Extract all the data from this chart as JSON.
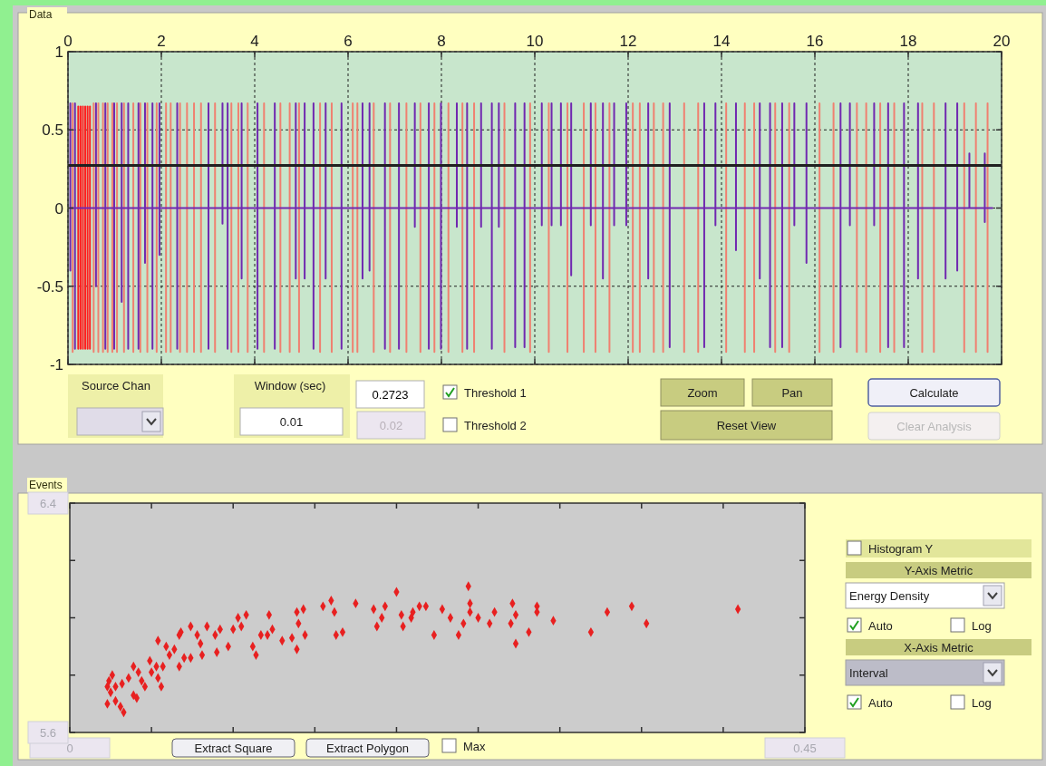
{
  "chart_data": [
    {
      "type": "line",
      "title": "Data",
      "xlim": [
        0,
        20
      ],
      "xticks": [
        0,
        2,
        4,
        6,
        8,
        10,
        12,
        14,
        16,
        18,
        20
      ],
      "ylim": [
        -1,
        1
      ],
      "yticks": [
        -1,
        -0.5,
        0,
        0.5,
        1
      ],
      "grid": true,
      "ref_lines": [
        {
          "axis": "y",
          "value": 0.2723,
          "label": "0.2723",
          "color": "#202020"
        }
      ],
      "annotations": [
        "Source Chan",
        "Window (sec)",
        "0.01",
        "0.02",
        "Threshold 1",
        "Threshold 2",
        "Zoom",
        "Pan",
        "Reset View",
        "Calculate",
        "Clear Analysis"
      ],
      "series": [
        {
          "color": "#f08070",
          "x": [
            0.1,
            0.1
          ],
          "values": [
            0.67,
            -0.92
          ]
        },
        {
          "color": "#f08070",
          "x": [
            0.55,
            0.55
          ],
          "values": [
            0.67,
            -0.92
          ]
        },
        {
          "color": "#f08070",
          "x": [
            0.65,
            0.65
          ],
          "values": [
            0.67,
            -0.92
          ]
        },
        {
          "color": "#f08070",
          "x": [
            0.75,
            0.75
          ],
          "values": [
            0.67,
            -0.92
          ]
        },
        {
          "color": "#f08070",
          "x": [
            0.85,
            0.85
          ],
          "values": [
            0.67,
            -0.92
          ]
        },
        {
          "color": "#f08070",
          "x": [
            0.95,
            0.95
          ],
          "values": [
            0.67,
            -0.92
          ]
        },
        {
          "color": "#f08070",
          "x": [
            1.05,
            1.05
          ],
          "values": [
            0.67,
            -0.92
          ]
        },
        {
          "color": "#f08070",
          "x": [
            1.2,
            1.2
          ],
          "values": [
            0.67,
            -0.92
          ]
        },
        {
          "color": "#f08070",
          "x": [
            1.4,
            1.4
          ],
          "values": [
            0.67,
            -0.92
          ]
        },
        {
          "color": "#f08070",
          "x": [
            1.55,
            1.55
          ],
          "values": [
            0.67,
            -0.92
          ]
        },
        {
          "color": "#f08070",
          "x": [
            1.7,
            1.7
          ],
          "values": [
            0.67,
            -0.92
          ]
        },
        {
          "color": "#f08070",
          "x": [
            1.9,
            1.9
          ],
          "values": [
            0.67,
            -0.92
          ]
        },
        {
          "color": "#f08070",
          "x": [
            2.1,
            2.1
          ],
          "values": [
            0.67,
            -0.92
          ]
        },
        {
          "color": "#f08070",
          "x": [
            2.2,
            2.2
          ],
          "values": [
            0.67,
            -0.92
          ]
        },
        {
          "color": "#f08070",
          "x": [
            2.4,
            2.4
          ],
          "values": [
            0.67,
            -0.92
          ]
        },
        {
          "color": "#f08070",
          "x": [
            2.55,
            2.55
          ],
          "values": [
            0.67,
            -0.92
          ]
        },
        {
          "color": "#f08070",
          "x": [
            2.7,
            2.7
          ],
          "values": [
            0.67,
            -0.92
          ]
        },
        {
          "color": "#f08070",
          "x": [
            2.85,
            2.85
          ],
          "values": [
            0.67,
            -0.92
          ]
        },
        {
          "color": "#f08070",
          "x": [
            3.15,
            3.15
          ],
          "values": [
            0.67,
            -0.92
          ]
        },
        {
          "color": "#f08070",
          "x": [
            3.5,
            3.5
          ],
          "values": [
            0.67,
            -0.92
          ]
        },
        {
          "color": "#f08070",
          "x": [
            3.65,
            3.65
          ],
          "values": [
            0.67,
            -0.92
          ]
        },
        {
          "color": "#f08070",
          "x": [
            3.85,
            3.85
          ],
          "values": [
            0.67,
            -0.92
          ]
        },
        {
          "color": "#f08070",
          "x": [
            4.2,
            4.2
          ],
          "values": [
            0.67,
            -0.92
          ]
        },
        {
          "color": "#f08070",
          "x": [
            4.55,
            4.55
          ],
          "values": [
            0.67,
            -0.92
          ]
        },
        {
          "color": "#f08070",
          "x": [
            4.75,
            4.75
          ],
          "values": [
            0.67,
            -0.92
          ]
        },
        {
          "color": "#f08070",
          "x": [
            4.95,
            4.95
          ],
          "values": [
            0.67,
            -0.92
          ]
        },
        {
          "color": "#f08070",
          "x": [
            5.4,
            5.4
          ],
          "values": [
            0.67,
            -0.92
          ]
        },
        {
          "color": "#f08070",
          "x": [
            5.65,
            5.65
          ],
          "values": [
            0.67,
            -0.92
          ]
        },
        {
          "color": "#f08070",
          "x": [
            6.1,
            6.1
          ],
          "values": [
            0.67,
            -0.92
          ]
        },
        {
          "color": "#f08070",
          "x": [
            6.2,
            6.2
          ],
          "values": [
            0.67,
            -0.92
          ]
        },
        {
          "color": "#f08070",
          "x": [
            6.55,
            6.55
          ],
          "values": [
            0.67,
            -0.92
          ]
        },
        {
          "color": "#f08070",
          "x": [
            6.9,
            6.9
          ],
          "values": [
            0.67,
            -0.92
          ]
        },
        {
          "color": "#f08070",
          "x": [
            7.25,
            7.25
          ],
          "values": [
            0.67,
            -0.92
          ]
        },
        {
          "color": "#f08070",
          "x": [
            7.55,
            7.55
          ],
          "values": [
            0.67,
            -0.92
          ]
        },
        {
          "color": "#f08070",
          "x": [
            7.85,
            7.85
          ],
          "values": [
            0.67,
            -0.92
          ]
        },
        {
          "color": "#f08070",
          "x": [
            8.15,
            8.15
          ],
          "values": [
            0.67,
            -0.92
          ]
        },
        {
          "color": "#f08070",
          "x": [
            8.45,
            8.45
          ],
          "values": [
            0.67,
            -0.92
          ]
        },
        {
          "color": "#f08070",
          "x": [
            8.7,
            8.7
          ],
          "values": [
            0.67,
            -0.92
          ]
        },
        {
          "color": "#f08070",
          "x": [
            9.35,
            9.35
          ],
          "values": [
            0.67,
            -0.92
          ]
        },
        {
          "color": "#f08070",
          "x": [
            9.9,
            9.9
          ],
          "values": [
            0.67,
            -0.92
          ]
        },
        {
          "color": "#f08070",
          "x": [
            10.3,
            10.3
          ],
          "values": [
            0.67,
            -0.92
          ]
        },
        {
          "color": "#f08070",
          "x": [
            10.7,
            10.7
          ],
          "values": [
            0.67,
            -0.92
          ]
        },
        {
          "color": "#f08070",
          "x": [
            11.05,
            11.05
          ],
          "values": [
            0.67,
            -0.92
          ]
        },
        {
          "color": "#f08070",
          "x": [
            11.3,
            11.3
          ],
          "values": [
            0.67,
            -0.92
          ]
        },
        {
          "color": "#f08070",
          "x": [
            11.6,
            11.6
          ],
          "values": [
            0.67,
            -0.92
          ]
        },
        {
          "color": "#f08070",
          "x": [
            12.1,
            12.1
          ],
          "values": [
            0.67,
            -0.92
          ]
        },
        {
          "color": "#f08070",
          "x": [
            12.25,
            12.25
          ],
          "values": [
            0.67,
            -0.92
          ]
        },
        {
          "color": "#f08070",
          "x": [
            12.55,
            12.55
          ],
          "values": [
            0.67,
            -0.92
          ]
        },
        {
          "color": "#f08070",
          "x": [
            12.75,
            12.75
          ],
          "values": [
            0.67,
            -0.92
          ]
        },
        {
          "color": "#f08070",
          "x": [
            13.2,
            13.2
          ],
          "values": [
            0.67,
            -0.92
          ]
        },
        {
          "color": "#f08070",
          "x": [
            13.5,
            13.5
          ],
          "values": [
            0.67,
            -0.92
          ]
        },
        {
          "color": "#f08070",
          "x": [
            14.1,
            14.1
          ],
          "values": [
            0.67,
            -0.92
          ]
        },
        {
          "color": "#f08070",
          "x": [
            14.5,
            14.5
          ],
          "values": [
            0.67,
            -0.92
          ]
        },
        {
          "color": "#f08070",
          "x": [
            14.7,
            14.7
          ],
          "values": [
            0.67,
            -0.92
          ]
        },
        {
          "color": "#f08070",
          "x": [
            15.15,
            15.15
          ],
          "values": [
            0.67,
            -0.92
          ]
        },
        {
          "color": "#f08070",
          "x": [
            15.45,
            15.45
          ],
          "values": [
            0.67,
            -0.92
          ]
        },
        {
          "color": "#f08070",
          "x": [
            16.1,
            16.1
          ],
          "values": [
            0.67,
            -0.92
          ]
        },
        {
          "color": "#f08070",
          "x": [
            16.4,
            16.4
          ],
          "values": [
            0.67,
            -0.92
          ]
        },
        {
          "color": "#f08070",
          "x": [
            16.9,
            16.9
          ],
          "values": [
            0.67,
            -0.92
          ]
        },
        {
          "color": "#f08070",
          "x": [
            17.1,
            17.1
          ],
          "values": [
            0.67,
            -0.92
          ]
        },
        {
          "color": "#f08070",
          "x": [
            17.4,
            17.4
          ],
          "values": [
            0.67,
            -0.92
          ]
        },
        {
          "color": "#f08070",
          "x": [
            17.7,
            17.7
          ],
          "values": [
            0.67,
            -0.92
          ]
        },
        {
          "color": "#f08070",
          "x": [
            18.3,
            18.3
          ],
          "values": [
            0.67,
            -0.92
          ]
        },
        {
          "color": "#f08070",
          "x": [
            18.55,
            18.55
          ],
          "values": [
            0.67,
            -0.92
          ]
        },
        {
          "color": "#f08070",
          "x": [
            19.2,
            19.2
          ],
          "values": [
            0.67,
            -0.92
          ]
        },
        {
          "color": "#f08070",
          "x": [
            19.45,
            19.45
          ],
          "values": [
            0.67,
            -0.92
          ]
        },
        {
          "color": "#f08070",
          "x": [
            19.7,
            19.7
          ],
          "values": [
            0.67,
            -0.92
          ]
        },
        {
          "color": "#ff2020",
          "x": [
            0.22,
            0.22
          ],
          "values": [
            0.65,
            -0.9
          ]
        },
        {
          "color": "#ff2020",
          "x": [
            0.27,
            0.27
          ],
          "values": [
            0.65,
            -0.9
          ]
        },
        {
          "color": "#ff2020",
          "x": [
            0.32,
            0.32
          ],
          "values": [
            0.65,
            -0.9
          ]
        },
        {
          "color": "#ff2020",
          "x": [
            0.37,
            0.37
          ],
          "values": [
            0.65,
            -0.9
          ]
        },
        {
          "color": "#ff2020",
          "x": [
            0.42,
            0.42
          ],
          "values": [
            0.65,
            -0.9
          ]
        },
        {
          "color": "#ff2020",
          "x": [
            0.47,
            0.47
          ],
          "values": [
            0.65,
            -0.9
          ]
        },
        {
          "color": "#7028b0",
          "x": [
            0.05,
            0.05,
            0.05,
            0.05,
            0.15,
            0.15,
            0.15,
            0.15,
            0.6,
            0.6,
            0.6,
            0.6,
            0.8,
            0.8,
            0.8,
            0.8,
            0.99,
            0.99,
            0.99,
            0.99,
            1.15,
            1.15,
            1.15,
            1.15,
            1.29,
            1.29,
            1.29,
            1.29,
            1.51,
            1.51,
            1.51,
            1.51,
            1.65,
            1.65,
            1.65,
            1.65,
            1.81,
            1.81,
            1.81,
            1.81,
            1.96,
            1.96,
            1.96,
            1.96,
            2.34,
            2.34,
            2.34,
            2.34,
            3.01,
            3.01,
            3.01,
            3.01,
            3.31,
            3.31,
            3.31,
            3.31,
            3.42,
            3.42,
            3.42,
            3.42,
            3.72,
            3.72,
            3.72,
            3.72,
            4.06,
            4.06,
            4.06,
            4.06,
            4.43,
            4.43,
            4.43,
            4.43,
            4.88,
            4.88,
            4.88,
            4.88,
            5.07,
            5.07,
            5.07,
            5.07,
            5.26,
            5.26,
            5.26,
            5.26,
            5.52,
            5.52,
            5.52,
            5.52,
            5.86,
            5.86,
            5.86,
            5.86,
            6.31,
            6.31,
            6.31,
            6.31,
            6.46,
            6.46,
            6.46,
            6.46,
            6.79,
            6.79,
            6.79,
            6.79,
            7.09,
            7.09,
            7.09,
            7.09,
            7.43,
            7.43,
            7.43,
            7.43,
            7.73,
            7.73,
            7.73,
            7.73,
            7.99,
            7.99,
            7.99,
            7.99,
            8.33,
            8.33,
            8.33,
            8.33,
            8.55,
            8.55,
            8.55,
            8.55,
            8.85,
            8.85,
            8.85,
            8.85,
            9.08,
            9.08,
            9.08,
            9.08,
            9.23,
            9.23,
            9.23,
            9.23,
            9.58,
            9.58,
            9.58,
            9.58,
            9.78,
            9.78,
            9.78,
            9.78,
            10.15,
            10.15,
            10.15,
            10.15,
            10.36,
            10.36,
            10.36,
            10.36,
            10.56,
            10.56,
            10.56,
            10.56,
            10.78,
            10.78,
            10.78,
            10.78,
            11.2,
            11.2,
            11.2,
            11.2,
            11.46,
            11.46,
            11.46,
            11.46,
            11.7,
            11.7,
            11.7,
            11.7,
            11.96,
            11.96,
            11.96,
            11.96,
            12.43,
            12.43,
            12.43,
            12.43,
            12.89,
            12.89,
            12.89,
            12.89,
            13.63,
            13.63,
            13.63,
            13.63,
            13.87,
            13.87,
            13.87,
            13.87,
            14.31,
            14.31,
            14.31,
            14.31,
            14.82,
            14.82,
            14.82,
            14.82,
            15.04,
            15.04,
            15.04,
            15.04,
            15.3,
            15.3,
            15.3,
            15.3,
            15.56,
            15.56,
            15.56,
            15.56,
            15.82,
            15.82,
            15.82,
            15.82,
            16.55,
            16.55,
            16.55,
            16.55,
            16.75,
            16.75,
            16.75,
            16.75,
            17.27,
            17.27,
            17.27,
            17.27,
            17.57,
            17.57,
            17.57,
            17.57,
            17.91,
            17.91,
            17.91,
            17.91,
            18.21,
            18.21,
            18.21,
            18.21,
            18.8,
            18.8,
            18.8,
            18.8,
            19.05,
            19.05,
            19.05,
            19.05,
            19.31,
            19.31,
            19.31,
            19.31,
            19.64,
            19.64,
            19.64,
            19.64,
            19.8
          ],
          "values": [
            0,
            0.67,
            -0.4,
            0,
            0,
            0.67,
            -0.9,
            0,
            0,
            0.67,
            -0.5,
            0,
            0,
            0.67,
            -0.9,
            0,
            0,
            0.67,
            -0.9,
            0,
            0,
            0.67,
            -0.6,
            0,
            0,
            0.67,
            -0.9,
            0,
            0,
            0.67,
            -0.9,
            0,
            0,
            0.67,
            -0.35,
            0,
            0,
            0.67,
            -0.9,
            0,
            0,
            0.67,
            -0.3,
            0,
            0,
            0.67,
            -0.9,
            0,
            0,
            0.67,
            -0.9,
            0,
            0,
            0.67,
            -0.1,
            0,
            0,
            0.67,
            -0.9,
            0,
            0,
            0.67,
            -0.45,
            0,
            0,
            0.67,
            -0.9,
            0,
            0,
            0.67,
            -0.9,
            0,
            0,
            0.67,
            -0.45,
            0,
            0,
            0.67,
            -0.45,
            0,
            0,
            0.67,
            -0.9,
            0,
            0,
            0.67,
            -0.45,
            0,
            0,
            0.67,
            -0.9,
            0,
            0,
            0.67,
            -0.45,
            0,
            0,
            0.67,
            -0.4,
            0,
            0,
            0.67,
            -0.9,
            0,
            0,
            0.67,
            -0.9,
            0,
            0,
            0.67,
            -0.12,
            0,
            0,
            0.67,
            -0.9,
            0,
            0,
            0.67,
            -0.9,
            0,
            0,
            0.67,
            -0.12,
            0,
            0,
            0.67,
            -0.9,
            0,
            0,
            0.67,
            -0.12,
            0,
            0,
            0.67,
            -0.9,
            0,
            0,
            0.67,
            -0.12,
            0,
            0,
            0.67,
            -0.89,
            0,
            0,
            0.67,
            -0.89,
            0,
            0,
            0.67,
            -0.11,
            0,
            0,
            0.67,
            -0.11,
            0,
            0,
            0.67,
            -0.11,
            0,
            0,
            0.67,
            -0.43,
            0,
            0,
            0.67,
            -0.11,
            0,
            0,
            0.67,
            -0.45,
            0,
            0,
            0.67,
            -0.11,
            0,
            0,
            0.67,
            -0.11,
            0,
            0,
            0.67,
            -0.45,
            0,
            0,
            0.67,
            -0.89,
            0,
            0,
            0.67,
            -0.89,
            0,
            0,
            0.67,
            -0.11,
            0,
            0,
            0.67,
            -0.27,
            0,
            0,
            0.67,
            -0.45,
            0,
            0,
            0.67,
            -0.89,
            0,
            0,
            0.67,
            -0.89,
            0,
            0,
            0.67,
            -0.11,
            0,
            0,
            0.67,
            -0.35,
            0,
            0,
            0.67,
            -0.89,
            0,
            0,
            0.67,
            -0.11,
            0,
            0,
            0.67,
            -0.11,
            0,
            0,
            0.67,
            -0.89,
            0,
            0,
            0.67,
            -0.89,
            0,
            0,
            0.67,
            -0.45,
            0,
            0,
            0.67,
            -0.45,
            0,
            0,
            0.67,
            -0.4,
            0,
            0,
            0.35,
            0,
            0,
            0,
            0.35,
            -0.09,
            0,
            0
          ]
        }
      ]
    },
    {
      "type": "scatter",
      "title": "Events",
      "marker": "diamond",
      "xlim": [
        0,
        0.45
      ],
      "xticks": [
        0,
        {
          "value": 0.05,
          "label": null
        },
        {
          "value": 0.1,
          "label": null
        },
        {
          "value": 0.15,
          "label": null
        },
        {
          "value": 0.2,
          "label": null
        },
        {
          "value": 0.25,
          "label": null
        },
        {
          "value": 0.3,
          "label": null
        },
        {
          "value": 0.35,
          "label": null
        },
        {
          "value": 0.4,
          "label": null
        },
        0.45
      ],
      "ylim": [
        5.6,
        6.4
      ],
      "yticks": [
        5.6,
        {
          "value": 5.8,
          "label": null
        },
        {
          "value": 6.0,
          "label": null
        },
        {
          "value": 6.2,
          "label": null
        },
        6.4
      ],
      "annotations": [
        "Extract Square",
        "Extract Polygon",
        "Max",
        "Histogram Y",
        "Y-Axis Metric",
        "Energy Density",
        "Auto",
        "Log",
        "X-Axis Metric",
        "Interval",
        "Auto",
        "Log"
      ],
      "series": [
        {
          "color": "#e82020",
          "x": [
            0.026,
            0.024,
            0.023,
            0.025,
            0.023,
            0.028,
            0.031,
            0.033,
            0.028,
            0.032,
            0.036,
            0.039,
            0.041,
            0.039,
            0.042,
            0.044,
            0.046,
            0.049,
            0.05,
            0.053,
            0.054,
            0.056,
            0.057,
            0.054,
            0.059,
            0.061,
            0.064,
            0.067,
            0.068,
            0.067,
            0.07,
            0.074,
            0.074,
            0.078,
            0.08,
            0.081,
            0.084,
            0.089,
            0.092,
            0.09,
            0.097,
            0.1,
            0.103,
            0.105,
            0.108,
            0.112,
            0.114,
            0.117,
            0.121,
            0.122,
            0.124,
            0.13,
            0.136,
            0.139,
            0.139,
            0.14,
            0.143,
            0.144,
            0.155,
            0.16,
            0.162,
            0.163,
            0.167,
            0.175,
            0.186,
            0.188,
            0.191,
            0.193,
            0.2,
            0.203,
            0.204,
            0.209,
            0.21,
            0.214,
            0.218,
            0.223,
            0.228,
            0.233,
            0.238,
            0.241,
            0.244,
            0.245,
            0.245,
            0.25,
            0.257,
            0.26,
            0.27,
            0.271,
            0.273,
            0.273,
            0.281,
            0.286,
            0.286,
            0.296,
            0.319,
            0.329,
            0.344,
            0.353,
            0.409
          ],
          "values": [
            5.8,
            5.78,
            5.76,
            5.74,
            5.7,
            5.71,
            5.69,
            5.67,
            5.76,
            5.77,
            5.79,
            5.73,
            5.72,
            5.83,
            5.81,
            5.78,
            5.76,
            5.85,
            5.81,
            5.83,
            5.79,
            5.76,
            5.83,
            5.92,
            5.9,
            5.87,
            5.89,
            5.94,
            5.95,
            5.83,
            5.86,
            5.86,
            5.97,
            5.94,
            5.91,
            5.87,
            5.97,
            5.94,
            5.96,
            5.88,
            5.9,
            5.96,
            6.0,
            5.97,
            6.01,
            5.9,
            5.87,
            5.94,
            5.94,
            6.01,
            5.96,
            5.92,
            5.93,
            5.89,
            6.02,
            5.98,
            6.03,
            5.94,
            6.04,
            6.06,
            6.02,
            5.94,
            5.95,
            6.05,
            6.03,
            5.97,
            6.0,
            6.04,
            6.09,
            6.01,
            5.97,
            6.0,
            6.02,
            6.04,
            6.04,
            5.94,
            6.03,
            6.0,
            5.94,
            5.98,
            6.11,
            6.05,
            6.02,
            6.0,
            5.98,
            6.02,
            5.98,
            6.05,
            6.01,
            5.91,
            5.95,
            6.04,
            6.02,
            5.99,
            5.95,
            6.02,
            6.04,
            5.98,
            6.03
          ]
        }
      ]
    }
  ]
}
